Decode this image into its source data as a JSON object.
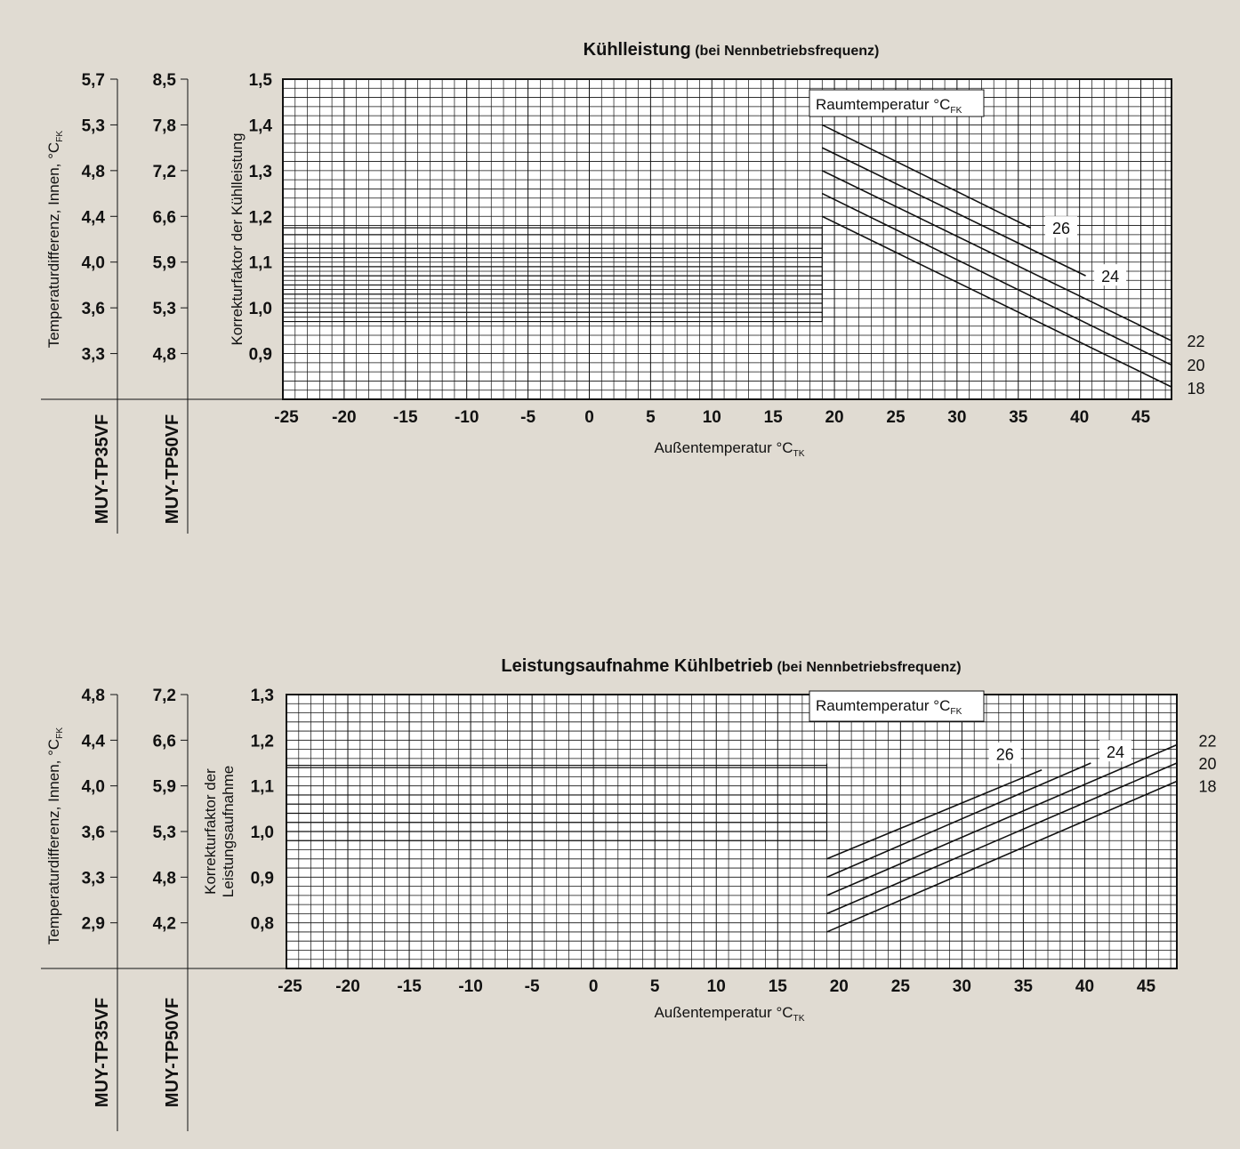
{
  "colors": {
    "background": "#e0dbd2",
    "ink": "#111111",
    "plot_bg": "#ffffff"
  },
  "chart_data": [
    {
      "type": "line",
      "title": "Kühlleistung",
      "subtitle": "(bei Nennbetriebsfrequenz)",
      "xlabel": "Außentemperatur °C",
      "xlabel_sub": "TK",
      "ylabel": "Korrekturfaktor der Kühlleistung",
      "ylabel_lines": [
        "Korrekturfaktor der Kühlleistung"
      ],
      "xlim": [
        -25,
        47.5
      ],
      "ylim": [
        0.8,
        1.5
      ],
      "x_ticks": [
        -25,
        -20,
        -15,
        -10,
        -5,
        0,
        5,
        10,
        15,
        20,
        25,
        30,
        35,
        40,
        45
      ],
      "y_ticks": [
        0.9,
        1.0,
        1.1,
        1.2,
        1.3,
        1.4,
        1.5
      ],
      "y_tick_labels": [
        "0,9",
        "1,0",
        "1,1",
        "1,2",
        "1,3",
        "1,4",
        "1,5"
      ],
      "grid": true,
      "grid_minor_x": 1,
      "grid_minor_y": 0.02,
      "aux_axes": [
        {
          "title": "Temperaturdifferenz, Innen, °C",
          "title_sub": "FK",
          "model": "MUY-TP35VF",
          "labels": [
            "3,3",
            "3,6",
            "4,0",
            "4,4",
            "4,8",
            "5,3",
            "5,7"
          ]
        },
        {
          "title": "",
          "title_sub": "",
          "model": "MUY-TP50VF",
          "labels": [
            "4,8",
            "5,3",
            "5,9",
            "6,6",
            "7,2",
            "7,8",
            "8,5"
          ]
        }
      ],
      "aux_label_y": [
        0.9,
        1.0,
        1.1,
        1.2,
        1.3,
        1.4,
        1.5
      ],
      "legend_title": "Raumtemperatur °C",
      "legend_title_sub": "FK",
      "step_x": 19,
      "extra_hlines": [
        0.97,
        0.99,
        1.01,
        1.03,
        1.05,
        1.07,
        1.09,
        1.11,
        1.13,
        1.16,
        1.175
      ],
      "series": [
        {
          "name": "26",
          "x": [
            19,
            36
          ],
          "y": [
            1.4,
            1.175
          ],
          "label_pos": [
            38.5,
            1.175
          ]
        },
        {
          "name": "24",
          "x": [
            19,
            40.5
          ],
          "y": [
            1.35,
            1.07
          ],
          "label_pos": [
            42.5,
            1.07
          ]
        },
        {
          "name": "22",
          "x": [
            19,
            47.5
          ],
          "y": [
            1.3,
            0.928
          ],
          "label_pos": [
            49.5,
            0.928
          ]
        },
        {
          "name": "20",
          "x": [
            19,
            47.5
          ],
          "y": [
            1.25,
            0.875
          ],
          "label_pos": [
            49.5,
            0.876
          ]
        },
        {
          "name": "18",
          "x": [
            19,
            47.5
          ],
          "y": [
            1.2,
            0.827
          ],
          "label_pos": [
            49.5,
            0.825
          ]
        }
      ]
    },
    {
      "type": "line",
      "title": "Leistungsaufnahme Kühlbetrieb",
      "subtitle": "(bei Nennbetriebsfrequenz)",
      "xlabel": "Außentemperatur °C",
      "xlabel_sub": "TK",
      "ylabel": "Korrekturfaktor der Leistungsaufnahme",
      "ylabel_lines": [
        "Korrekturfaktor der",
        "Leistungsaufnahme"
      ],
      "xlim": [
        -25,
        47.5
      ],
      "ylim": [
        0.7,
        1.3
      ],
      "x_ticks": [
        -25,
        -20,
        -15,
        -10,
        -5,
        0,
        5,
        10,
        15,
        20,
        25,
        30,
        35,
        40,
        45
      ],
      "y_ticks": [
        0.8,
        0.9,
        1.0,
        1.1,
        1.2,
        1.3
      ],
      "y_tick_labels": [
        "0,8",
        "0,9",
        "1,0",
        "1,1",
        "1,2",
        "1,3"
      ],
      "grid": true,
      "grid_minor_x": 1,
      "grid_minor_y": 0.02,
      "aux_axes": [
        {
          "title": "Temperaturdifferenz, Innen, °C",
          "title_sub": "FK",
          "model": "MUY-TP35VF",
          "labels": [
            "2,9",
            "3,3",
            "3,6",
            "4,0",
            "4,4",
            "4,8"
          ]
        },
        {
          "title": "",
          "title_sub": "",
          "model": "MUY-TP50VF",
          "labels": [
            "4,2",
            "4,8",
            "5,3",
            "5,9",
            "6,6",
            "7,2"
          ]
        }
      ],
      "aux_label_y": [
        0.8,
        0.9,
        1.0,
        1.1,
        1.2,
        1.3
      ],
      "legend_title": "Raumtemperatur °C",
      "legend_title_sub": "FK",
      "step_x": 19,
      "extra_hlines": [
        0.98,
        1.0,
        1.02,
        1.04,
        1.06,
        1.08,
        1.14,
        1.145
      ],
      "series": [
        {
          "name": "26",
          "x": [
            19,
            36.5
          ],
          "y": [
            0.94,
            1.135
          ],
          "label_pos": [
            33.5,
            1.17
          ]
        },
        {
          "name": "24",
          "x": [
            19,
            40.5
          ],
          "y": [
            0.9,
            1.15
          ],
          "label_pos": [
            42.5,
            1.175
          ]
        },
        {
          "name": "22",
          "x": [
            19,
            47.5
          ],
          "y": [
            0.86,
            1.19
          ],
          "label_pos": [
            50,
            1.2
          ]
        },
        {
          "name": "20",
          "x": [
            19,
            47.5
          ],
          "y": [
            0.82,
            1.15
          ],
          "label_pos": [
            50,
            1.15
          ]
        },
        {
          "name": "18",
          "x": [
            19,
            47.5
          ],
          "y": [
            0.78,
            1.11
          ],
          "label_pos": [
            50,
            1.1
          ]
        }
      ]
    }
  ]
}
